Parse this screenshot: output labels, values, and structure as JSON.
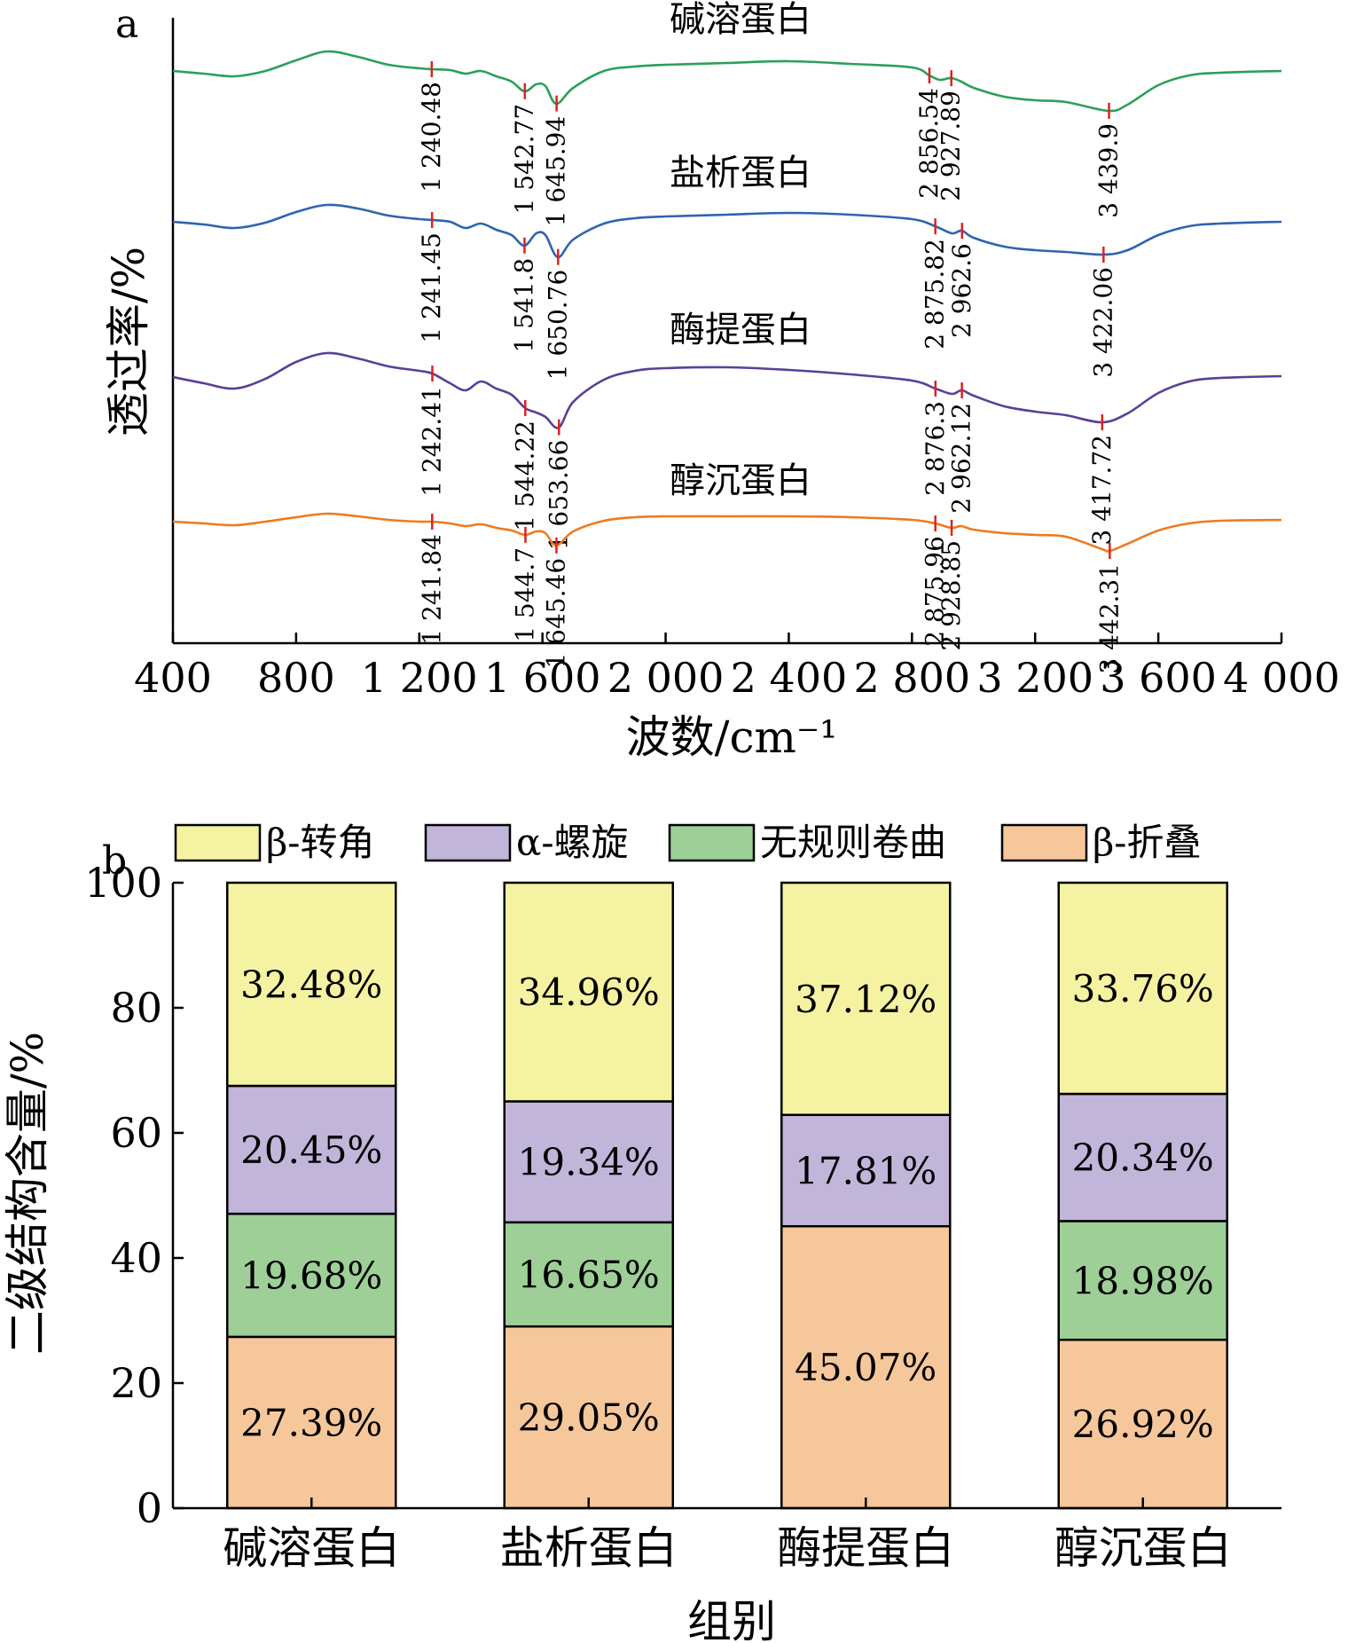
{
  "chart_data": [
    {
      "panel_label": "a",
      "type": "line",
      "xlabel": "波数/cm⁻¹",
      "ylabel": "透过率/%",
      "xlim": [
        400,
        4000
      ],
      "x_ticks": [
        400,
        800,
        1200,
        1600,
        2000,
        2400,
        2800,
        3200,
        3600,
        4000
      ],
      "x_tick_labels": [
        "400",
        "800",
        "1 200",
        "1 600",
        "2 000",
        "2 400",
        "2 800",
        "3 200",
        "3 600",
        "4 000"
      ],
      "grid": false,
      "colors": {
        "碱溶蛋白": "#2aa05a",
        "盐析蛋白": "#2e65b0",
        "酶提蛋白": "#5a3f98",
        "醇沉蛋白": "#ef7a1e",
        "peak_marker": "#e02020"
      },
      "series": [
        {
          "name": "碱溶蛋白",
          "color": "#2aa05a",
          "offset": 0,
          "points": [
            [
              400,
              -5
            ],
            [
              500,
              -8
            ],
            [
              600,
              -11
            ],
            [
              700,
              -5
            ],
            [
              800,
              7
            ],
            [
              900,
              17
            ],
            [
              1000,
              11
            ],
            [
              1100,
              2
            ],
            [
              1200,
              -2
            ],
            [
              1240,
              -3
            ],
            [
              1300,
              -4
            ],
            [
              1350,
              -8
            ],
            [
              1400,
              -5
            ],
            [
              1450,
              -11
            ],
            [
              1500,
              -17
            ],
            [
              1542,
              -28
            ],
            [
              1580,
              -20
            ],
            [
              1610,
              -22
            ],
            [
              1645,
              -42
            ],
            [
              1700,
              -24
            ],
            [
              1800,
              -5
            ],
            [
              1900,
              0
            ],
            [
              2000,
              2
            ],
            [
              2200,
              4
            ],
            [
              2400,
              6
            ],
            [
              2600,
              3
            ],
            [
              2800,
              -1
            ],
            [
              2856,
              -10
            ],
            [
              2890,
              -15
            ],
            [
              2927,
              -13
            ],
            [
              2960,
              -17
            ],
            [
              3000,
              -24
            ],
            [
              3100,
              -34
            ],
            [
              3200,
              -38
            ],
            [
              3300,
              -40
            ],
            [
              3439,
              -50
            ],
            [
              3500,
              -43
            ],
            [
              3600,
              -21
            ],
            [
              3700,
              -10
            ],
            [
              3800,
              -7
            ],
            [
              4000,
              -5
            ]
          ]
        },
        {
          "name": "盐析蛋白",
          "color": "#2e65b0",
          "offset": 0,
          "points": [
            [
              400,
              -5
            ],
            [
              500,
              -8
            ],
            [
              600,
              -12
            ],
            [
              700,
              -6
            ],
            [
              800,
              6
            ],
            [
              900,
              14
            ],
            [
              1000,
              10
            ],
            [
              1100,
              2
            ],
            [
              1200,
              -2
            ],
            [
              1241,
              -3
            ],
            [
              1300,
              -5
            ],
            [
              1350,
              -12
            ],
            [
              1400,
              -7
            ],
            [
              1450,
              -14
            ],
            [
              1500,
              -20
            ],
            [
              1541,
              -32
            ],
            [
              1580,
              -18
            ],
            [
              1610,
              -20
            ],
            [
              1650,
              -45
            ],
            [
              1700,
              -25
            ],
            [
              1800,
              -7
            ],
            [
              1900,
              -1
            ],
            [
              2000,
              1
            ],
            [
              2200,
              3
            ],
            [
              2400,
              5
            ],
            [
              2600,
              3
            ],
            [
              2800,
              -2
            ],
            [
              2875,
              -10
            ],
            [
              2930,
              -18
            ],
            [
              2962,
              -15
            ],
            [
              3000,
              -23
            ],
            [
              3100,
              -33
            ],
            [
              3200,
              -37
            ],
            [
              3300,
              -39
            ],
            [
              3422,
              -42
            ],
            [
              3500,
              -37
            ],
            [
              3600,
              -20
            ],
            [
              3700,
              -10
            ],
            [
              3800,
              -7
            ],
            [
              4000,
              -5
            ]
          ]
        },
        {
          "name": "酶提蛋白",
          "color": "#5a3f98",
          "offset": 0,
          "points": [
            [
              400,
              -5
            ],
            [
              500,
              -12
            ],
            [
              600,
              -18
            ],
            [
              700,
              -7
            ],
            [
              800,
              12
            ],
            [
              900,
              22
            ],
            [
              1000,
              16
            ],
            [
              1100,
              7
            ],
            [
              1200,
              2
            ],
            [
              1242,
              -1
            ],
            [
              1300,
              -12
            ],
            [
              1350,
              -20
            ],
            [
              1400,
              -10
            ],
            [
              1450,
              -18
            ],
            [
              1500,
              -25
            ],
            [
              1544,
              -40
            ],
            [
              1580,
              -45
            ],
            [
              1610,
              -50
            ],
            [
              1653,
              -62
            ],
            [
              1700,
              -33
            ],
            [
              1800,
              -8
            ],
            [
              1900,
              2
            ],
            [
              2000,
              5
            ],
            [
              2200,
              6
            ],
            [
              2400,
              3
            ],
            [
              2600,
              -2
            ],
            [
              2800,
              -9
            ],
            [
              2876,
              -18
            ],
            [
              2930,
              -24
            ],
            [
              2962,
              -20
            ],
            [
              3000,
              -26
            ],
            [
              3100,
              -38
            ],
            [
              3200,
              -44
            ],
            [
              3300,
              -48
            ],
            [
              3417,
              -56
            ],
            [
              3500,
              -46
            ],
            [
              3600,
              -23
            ],
            [
              3700,
              -10
            ],
            [
              3800,
              -6
            ],
            [
              4000,
              -4
            ]
          ]
        },
        {
          "name": "醇沉蛋白",
          "color": "#ef7a1e",
          "offset": 0,
          "points": [
            [
              400,
              -3
            ],
            [
              500,
              -5
            ],
            [
              600,
              -7
            ],
            [
              700,
              -3
            ],
            [
              800,
              2
            ],
            [
              900,
              6
            ],
            [
              1000,
              3
            ],
            [
              1100,
              -1
            ],
            [
              1200,
              -3
            ],
            [
              1241,
              -3
            ],
            [
              1300,
              -5
            ],
            [
              1350,
              -8
            ],
            [
              1400,
              -6
            ],
            [
              1450,
              -10
            ],
            [
              1500,
              -13
            ],
            [
              1544,
              -18
            ],
            [
              1580,
              -14
            ],
            [
              1610,
              -16
            ],
            [
              1645,
              -30
            ],
            [
              1700,
              -14
            ],
            [
              1800,
              -2
            ],
            [
              1900,
              2
            ],
            [
              2000,
              3
            ],
            [
              2200,
              3
            ],
            [
              2400,
              3
            ],
            [
              2600,
              2
            ],
            [
              2800,
              -1
            ],
            [
              2875,
              -5
            ],
            [
              2928,
              -10
            ],
            [
              2960,
              -8
            ],
            [
              3000,
              -12
            ],
            [
              3100,
              -16
            ],
            [
              3200,
              -18
            ],
            [
              3300,
              -20
            ],
            [
              3417,
              -34
            ],
            [
              3442,
              -36
            ],
            [
              3500,
              -28
            ],
            [
              3600,
              -13
            ],
            [
              3700,
              -5
            ],
            [
              3800,
              -2
            ],
            [
              4000,
              -1
            ]
          ]
        }
      ],
      "peaks": [
        {
          "series": "碱溶蛋白",
          "labels": [
            "1 240.48",
            "1 542.77",
            "1 645.94",
            "2 856.54",
            "2 927.89",
            "3 439.9"
          ],
          "x": [
            1240.48,
            1542.77,
            1645.94,
            2856.54,
            2927.89,
            3439.9
          ]
        },
        {
          "series": "盐析蛋白",
          "labels": [
            "1 241.45",
            "1 541.8",
            "1 650.76",
            "2 875.82",
            "2 962.6",
            "3 422.06"
          ],
          "x": [
            1241.45,
            1541.8,
            1650.76,
            2875.82,
            2962.6,
            3422.06
          ]
        },
        {
          "series": "酶提蛋白",
          "labels": [
            "1 242.41",
            "1 544.22",
            "1 653.66",
            "2 876.3",
            "2 962.12",
            "3 417.72"
          ],
          "x": [
            1242.41,
            1544.22,
            1653.66,
            2876.3,
            2962.12,
            3417.72
          ]
        },
        {
          "series": "醇沉蛋白",
          "labels": [
            "1 241.84",
            "1 544.7",
            "1 645.46",
            "2 875.96",
            "2 928.85",
            "3 442.31"
          ],
          "x": [
            1241.84,
            1544.7,
            1645.46,
            2875.96,
            2928.85,
            3442.31
          ]
        }
      ]
    },
    {
      "panel_label": "b",
      "type": "bar",
      "stacked": true,
      "xlabel": "组别",
      "ylabel": "二级结构含量/%",
      "ylim": [
        0,
        100
      ],
      "y_ticks": [
        0,
        20,
        40,
        60,
        80,
        100
      ],
      "categories": [
        "碱溶蛋白",
        "盐析蛋白",
        "酶提蛋白",
        "醇沉蛋白"
      ],
      "legend_position": "top",
      "grid": false,
      "series": [
        {
          "name": "β-折叠",
          "color": "#f6c79b",
          "values": [
            27.39,
            29.05,
            45.07,
            26.92
          ],
          "labels": [
            "27.39%",
            "29.05%",
            "45.07%",
            "26.92%"
          ]
        },
        {
          "name": "无规则卷曲",
          "color": "#9dcf97",
          "values": [
            19.68,
            16.65,
            0,
            18.98
          ],
          "labels": [
            "19.68%",
            "16.65%",
            "",
            "18.98%"
          ]
        },
        {
          "name": "α-螺旋",
          "color": "#c1b5da",
          "values": [
            20.45,
            19.34,
            17.81,
            20.34
          ],
          "labels": [
            "20.45%",
            "19.34%",
            "17.81%",
            "20.34%"
          ]
        },
        {
          "name": "β-转角",
          "color": "#f5f3a2",
          "values": [
            32.48,
            34.96,
            37.12,
            33.76
          ],
          "labels": [
            "32.48%",
            "34.96%",
            "37.12%",
            "33.76%"
          ]
        }
      ],
      "legend_order": [
        "β-转角",
        "α-螺旋",
        "无规则卷曲",
        "β-折叠"
      ]
    }
  ]
}
